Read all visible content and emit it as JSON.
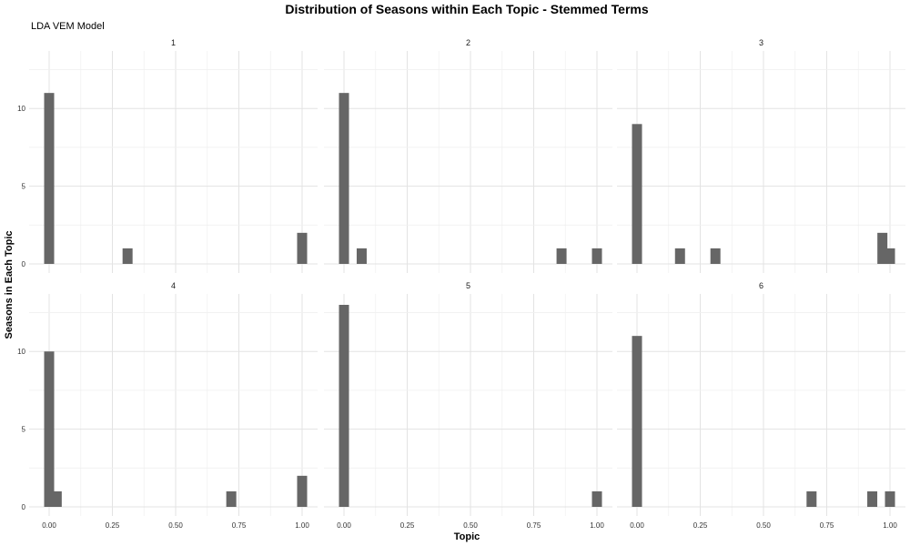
{
  "chart_data": {
    "type": "bar",
    "title": "Distribution of Seasons within Each Topic - Stemmed Terms",
    "subtitle": "LDA VEM Model",
    "xlabel": "Topic",
    "ylabel": "Seasons in Each Topic",
    "xlim": [
      0,
      1
    ],
    "ylim": [
      0,
      13
    ],
    "x_ticks": [
      "0.00",
      "0.25",
      "0.50",
      "0.75",
      "1.00"
    ],
    "y_ticks": [
      "0",
      "5",
      "10"
    ],
    "grid": true,
    "bar_color": "#666666",
    "panels": [
      {
        "label": "1",
        "bins": [
          {
            "x": 0.0,
            "count": 11
          },
          {
            "x": 0.31,
            "count": 1
          },
          {
            "x": 1.0,
            "count": 2
          }
        ]
      },
      {
        "label": "2",
        "bins": [
          {
            "x": 0.0,
            "count": 11
          },
          {
            "x": 0.07,
            "count": 1
          },
          {
            "x": 0.86,
            "count": 1
          },
          {
            "x": 1.0,
            "count": 1
          }
        ]
      },
      {
        "label": "3",
        "bins": [
          {
            "x": 0.0,
            "count": 9
          },
          {
            "x": 0.17,
            "count": 1
          },
          {
            "x": 0.31,
            "count": 1
          },
          {
            "x": 0.97,
            "count": 2
          },
          {
            "x": 1.0,
            "count": 1
          }
        ]
      },
      {
        "label": "4",
        "bins": [
          {
            "x": 0.0,
            "count": 10
          },
          {
            "x": 0.03,
            "count": 1
          },
          {
            "x": 0.72,
            "count": 1
          },
          {
            "x": 1.0,
            "count": 2
          }
        ]
      },
      {
        "label": "5",
        "bins": [
          {
            "x": 0.0,
            "count": 13
          },
          {
            "x": 1.0,
            "count": 1
          }
        ]
      },
      {
        "label": "6",
        "bins": [
          {
            "x": 0.0,
            "count": 11
          },
          {
            "x": 0.69,
            "count": 1
          },
          {
            "x": 0.93,
            "count": 1
          },
          {
            "x": 1.0,
            "count": 1
          }
        ]
      }
    ]
  }
}
